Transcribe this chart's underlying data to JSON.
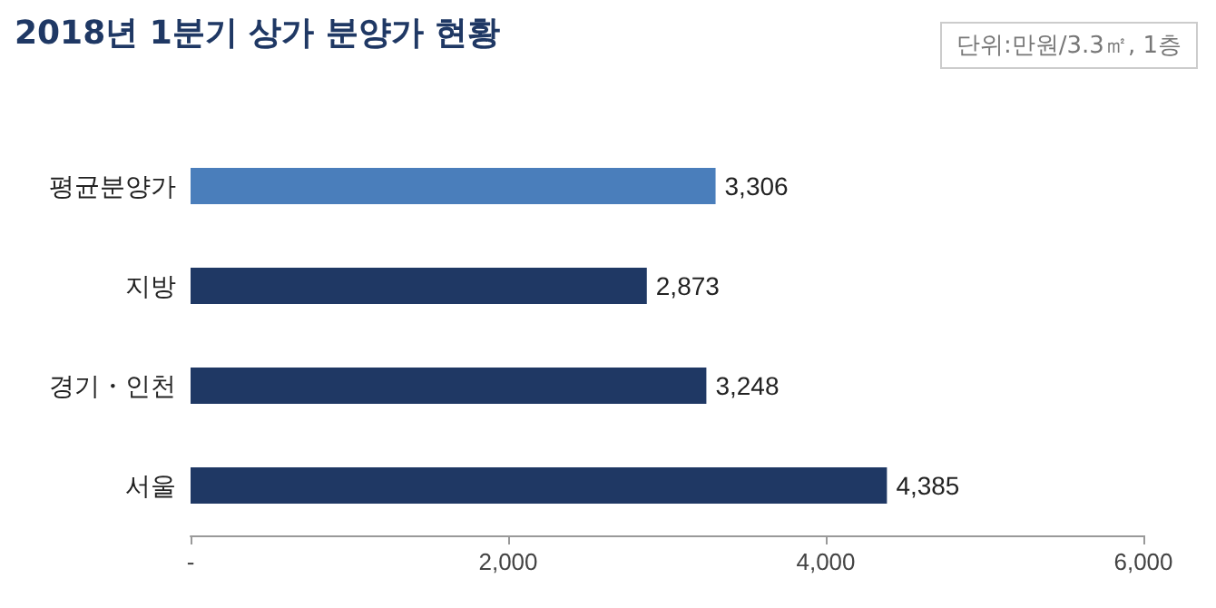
{
  "chart_data": {
    "type": "bar",
    "orientation": "horizontal",
    "title": "2018년 1분기 상가 분양가 현황",
    "subtitle": "단위:만원/3.3㎡, 1층",
    "categories": [
      "평균분양가",
      "지방",
      "경기・인천",
      "서울"
    ],
    "values": [
      3306,
      2873,
      3248,
      4385
    ],
    "colors": [
      "#4a7ebb",
      "#1f3864",
      "#1f3864",
      "#1f3864"
    ],
    "value_labels": [
      "3,306",
      "2,873",
      "3,248",
      "4,385"
    ],
    "xlim": [
      0,
      6000
    ],
    "xticks": [
      {
        "value": 0,
        "label": "-"
      },
      {
        "value": 2000,
        "label": "2,000"
      },
      {
        "value": 4000,
        "label": "4,000"
      },
      {
        "value": 6000,
        "label": "6,000"
      }
    ],
    "grid": false
  }
}
